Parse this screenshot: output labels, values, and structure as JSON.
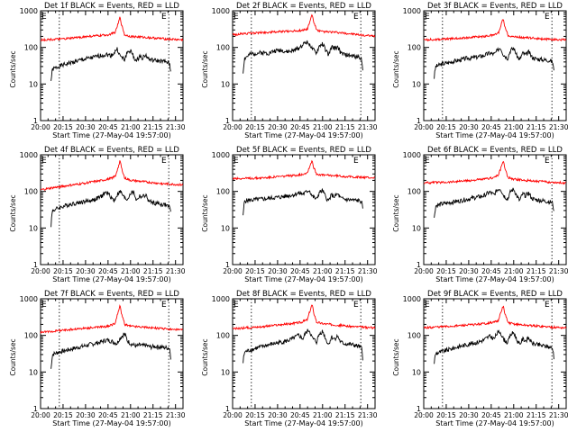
{
  "shared": {
    "xlabel": "Start Time (27-May-04 19:57:00)",
    "ylabel": "Counts/sec",
    "x_tick_labels": [
      "20:00",
      "20:15",
      "20:30",
      "20:45",
      "21:00",
      "21:15",
      "21:30"
    ],
    "x_tick_minutes": [
      0,
      15,
      30,
      45,
      60,
      75,
      90
    ],
    "y_tick_labels": [
      "1",
      "10",
      "100",
      "1000"
    ],
    "y_tick_values": [
      1,
      10,
      100,
      1000
    ],
    "xlim_minutes": [
      0,
      95
    ],
    "ylim": [
      1,
      1000
    ],
    "y_scale": "log",
    "line_colors": {
      "events": "#000000",
      "lld": "#ff0000"
    },
    "marker_label": "E"
  },
  "chart_data": [
    {
      "type": "line",
      "title": "Det 1f BLACK = Events, RED = LLD",
      "events_start": 7,
      "events_end": 87,
      "markers": [
        12.5,
        85.5
      ],
      "series": [
        {
          "name": "Events",
          "color": "#000000",
          "x_minutes": [
            7,
            8,
            12,
            16,
            20,
            24,
            28,
            32,
            36,
            40,
            44,
            47,
            49,
            51,
            53,
            56,
            58,
            60,
            62,
            64,
            66,
            68,
            70,
            72,
            74,
            76,
            80,
            84,
            86,
            87
          ],
          "values": [
            12,
            25,
            30,
            34,
            38,
            42,
            46,
            50,
            54,
            60,
            64,
            60,
            70,
            90,
            58,
            45,
            75,
            80,
            55,
            40,
            58,
            52,
            62,
            48,
            45,
            44,
            42,
            40,
            36,
            17
          ]
        },
        {
          "name": "LLD",
          "color": "#ff0000",
          "x_minutes": [
            0,
            8,
            16,
            24,
            32,
            40,
            46,
            50,
            52,
            53,
            54,
            56,
            60,
            68,
            76,
            84,
            95
          ],
          "values": [
            160,
            165,
            170,
            185,
            200,
            210,
            225,
            260,
            470,
            680,
            400,
            220,
            200,
            190,
            180,
            170,
            160
          ]
        }
      ]
    },
    {
      "type": "line",
      "title": "Det 2f BLACK = Events, RED = LLD",
      "events_start": 7,
      "events_end": 87,
      "markers": [
        12.5,
        85.5
      ],
      "series": [
        {
          "name": "Events",
          "color": "#000000",
          "x_minutes": [
            7,
            8,
            12,
            16,
            20,
            24,
            28,
            32,
            36,
            40,
            44,
            47,
            49,
            51,
            53,
            56,
            58,
            60,
            62,
            64,
            66,
            68,
            70,
            72,
            74,
            76,
            80,
            84,
            86,
            87
          ],
          "values": [
            20,
            50,
            65,
            70,
            72,
            70,
            80,
            85,
            75,
            80,
            95,
            120,
            140,
            130,
            90,
            70,
            110,
            125,
            85,
            60,
            100,
            95,
            105,
            70,
            65,
            62,
            58,
            55,
            50,
            15
          ]
        },
        {
          "name": "LLD",
          "color": "#ff0000",
          "x_minutes": [
            0,
            8,
            16,
            24,
            32,
            40,
            46,
            50,
            52,
            53,
            54,
            56,
            60,
            68,
            76,
            84,
            95
          ],
          "values": [
            220,
            240,
            250,
            260,
            270,
            280,
            290,
            320,
            560,
            800,
            500,
            290,
            270,
            260,
            240,
            220,
            200
          ]
        }
      ]
    },
    {
      "type": "line",
      "title": "Det 3f BLACK = Events, RED = LLD",
      "events_start": 7,
      "events_end": 87,
      "markers": [
        12.5,
        85.5
      ],
      "series": [
        {
          "name": "Events",
          "color": "#000000",
          "x_minutes": [
            7,
            8,
            12,
            16,
            20,
            24,
            28,
            32,
            36,
            40,
            44,
            47,
            49,
            51,
            53,
            56,
            58,
            60,
            62,
            64,
            66,
            68,
            70,
            72,
            74,
            76,
            80,
            84,
            86,
            87
          ],
          "values": [
            15,
            30,
            35,
            38,
            42,
            45,
            50,
            52,
            55,
            60,
            70,
            65,
            80,
            100,
            65,
            50,
            85,
            95,
            60,
            45,
            70,
            62,
            75,
            55,
            50,
            48,
            46,
            44,
            40,
            17
          ]
        },
        {
          "name": "LLD",
          "color": "#ff0000",
          "x_minutes": [
            0,
            8,
            16,
            24,
            32,
            40,
            46,
            50,
            52,
            53,
            54,
            56,
            60,
            68,
            76,
            84,
            95
          ],
          "values": [
            160,
            165,
            170,
            180,
            190,
            200,
            215,
            250,
            460,
            620,
            380,
            215,
            195,
            185,
            175,
            165,
            160
          ]
        }
      ]
    },
    {
      "type": "line",
      "title": "Det 4f BLACK = Events, RED = LLD",
      "events_start": 7,
      "events_end": 87,
      "markers": [
        12.5,
        85.5
      ],
      "series": [
        {
          "name": "Events",
          "color": "#000000",
          "x_minutes": [
            7,
            8,
            12,
            16,
            20,
            24,
            28,
            32,
            36,
            40,
            44,
            47,
            49,
            51,
            53,
            56,
            58,
            60,
            62,
            64,
            66,
            68,
            70,
            72,
            74,
            76,
            80,
            84,
            86,
            87
          ],
          "values": [
            12,
            30,
            35,
            40,
            45,
            48,
            52,
            55,
            60,
            70,
            95,
            70,
            55,
            80,
            100,
            65,
            60,
            90,
            95,
            55,
            75,
            70,
            80,
            55,
            50,
            48,
            45,
            42,
            38,
            22
          ]
        },
        {
          "name": "LLD",
          "color": "#ff0000",
          "x_minutes": [
            0,
            8,
            16,
            24,
            32,
            40,
            46,
            50,
            52,
            53,
            54,
            56,
            60,
            68,
            76,
            84,
            95
          ],
          "values": [
            110,
            125,
            140,
            155,
            175,
            195,
            220,
            260,
            480,
            700,
            420,
            230,
            200,
            185,
            170,
            160,
            150
          ]
        }
      ]
    },
    {
      "type": "line",
      "title": "Det 5f BLACK = Events, RED = LLD",
      "events_start": 7,
      "events_end": 87,
      "markers": [],
      "series": [
        {
          "name": "Events",
          "color": "#000000",
          "x_minutes": [
            7,
            8,
            12,
            16,
            20,
            24,
            28,
            32,
            36,
            40,
            44,
            47,
            49,
            51,
            53,
            56,
            58,
            60,
            62,
            64,
            66,
            68,
            70,
            72,
            74,
            76,
            80,
            84,
            86,
            87
          ],
          "values": [
            20,
            55,
            58,
            60,
            62,
            64,
            68,
            70,
            75,
            80,
            90,
            85,
            95,
            110,
            75,
            60,
            95,
            105,
            70,
            55,
            80,
            72,
            85,
            65,
            62,
            60,
            58,
            56,
            52,
            25
          ]
        },
        {
          "name": "LLD",
          "color": "#ff0000",
          "x_minutes": [
            0,
            8,
            16,
            24,
            32,
            40,
            46,
            50,
            52,
            53,
            54,
            56,
            60,
            68,
            76,
            84,
            95
          ],
          "values": [
            230,
            225,
            230,
            240,
            255,
            270,
            290,
            330,
            550,
            700,
            450,
            300,
            280,
            270,
            255,
            245,
            235
          ]
        }
      ]
    },
    {
      "type": "line",
      "title": "Det 6f BLACK = Events, RED = LLD",
      "events_start": 7,
      "events_end": 87,
      "markers": [
        85.5
      ],
      "series": [
        {
          "name": "Events",
          "color": "#000000",
          "x_minutes": [
            7,
            8,
            12,
            16,
            20,
            24,
            28,
            32,
            36,
            40,
            44,
            47,
            49,
            51,
            53,
            56,
            58,
            60,
            62,
            64,
            66,
            68,
            70,
            72,
            74,
            76,
            80,
            84,
            86,
            87
          ],
          "values": [
            18,
            40,
            45,
            48,
            52,
            55,
            60,
            65,
            70,
            75,
            95,
            80,
            110,
            120,
            80,
            60,
            100,
            115,
            75,
            55,
            85,
            75,
            90,
            65,
            60,
            58,
            55,
            52,
            48,
            20
          ]
        },
        {
          "name": "LLD",
          "color": "#ff0000",
          "x_minutes": [
            0,
            8,
            16,
            24,
            32,
            40,
            46,
            50,
            52,
            53,
            54,
            56,
            60,
            68,
            76,
            84,
            95
          ],
          "values": [
            170,
            175,
            180,
            190,
            200,
            215,
            235,
            280,
            500,
            700,
            430,
            240,
            215,
            200,
            190,
            180,
            170
          ]
        }
      ]
    },
    {
      "type": "line",
      "title": "Det 7f BLACK = Events, RED = LLD",
      "events_start": 7,
      "events_end": 87,
      "markers": [
        12.5,
        85.5
      ],
      "series": [
        {
          "name": "Events",
          "color": "#000000",
          "x_minutes": [
            7,
            8,
            12,
            16,
            20,
            24,
            28,
            32,
            36,
            40,
            44,
            47,
            49,
            51,
            53,
            56,
            58,
            60,
            62,
            64,
            66,
            68,
            70,
            72,
            74,
            76,
            80,
            84,
            86,
            87
          ],
          "values": [
            12,
            30,
            35,
            38,
            42,
            46,
            50,
            55,
            60,
            65,
            75,
            70,
            65,
            60,
            85,
            110,
            70,
            60,
            55,
            50,
            55,
            52,
            54,
            50,
            48,
            50,
            48,
            46,
            45,
            20
          ]
        },
        {
          "name": "LLD",
          "color": "#ff0000",
          "x_minutes": [
            0,
            8,
            16,
            24,
            32,
            40,
            46,
            50,
            52,
            53,
            54,
            56,
            60,
            68,
            76,
            84,
            95
          ],
          "values": [
            120,
            130,
            140,
            150,
            160,
            170,
            180,
            220,
            450,
            650,
            380,
            200,
            180,
            170,
            160,
            150,
            140
          ]
        }
      ]
    },
    {
      "type": "line",
      "title": "Det 8f BLACK = Events, RED = LLD",
      "events_start": 7,
      "events_end": 87,
      "markers": [
        12.5,
        85.5
      ],
      "series": [
        {
          "name": "Events",
          "color": "#000000",
          "x_minutes": [
            7,
            8,
            12,
            16,
            20,
            24,
            28,
            32,
            36,
            40,
            44,
            47,
            49,
            51,
            53,
            56,
            58,
            60,
            62,
            64,
            66,
            68,
            70,
            72,
            74,
            76,
            80,
            84,
            86,
            87
          ],
          "values": [
            18,
            35,
            40,
            45,
            50,
            55,
            60,
            65,
            70,
            80,
            100,
            80,
            120,
            140,
            85,
            65,
            110,
            130,
            80,
            55,
            90,
            80,
            95,
            65,
            60,
            58,
            55,
            50,
            45,
            18
          ]
        },
        {
          "name": "LLD",
          "color": "#ff0000",
          "x_minutes": [
            0,
            8,
            16,
            24,
            32,
            40,
            46,
            50,
            52,
            53,
            54,
            56,
            60,
            68,
            76,
            84,
            95
          ],
          "values": [
            150,
            160,
            170,
            180,
            195,
            210,
            230,
            270,
            520,
            700,
            420,
            230,
            210,
            195,
            180,
            170,
            160
          ]
        }
      ]
    },
    {
      "type": "line",
      "title": "Det 9f BLACK = Events, RED = LLD",
      "events_start": 7,
      "events_end": 87,
      "markers": [
        12.5,
        85.5
      ],
      "series": [
        {
          "name": "Events",
          "color": "#000000",
          "x_minutes": [
            7,
            8,
            12,
            16,
            20,
            24,
            28,
            32,
            36,
            40,
            44,
            47,
            49,
            51,
            53,
            56,
            58,
            60,
            62,
            64,
            66,
            68,
            70,
            72,
            74,
            76,
            80,
            84,
            86,
            87
          ],
          "values": [
            18,
            32,
            36,
            40,
            45,
            50,
            55,
            60,
            65,
            75,
            95,
            80,
            115,
            125,
            80,
            62,
            105,
            120,
            75,
            55,
            80,
            72,
            85,
            62,
            58,
            55,
            52,
            48,
            44,
            20
          ]
        },
        {
          "name": "LLD",
          "color": "#ff0000",
          "x_minutes": [
            0,
            8,
            16,
            24,
            32,
            40,
            46,
            50,
            52,
            53,
            54,
            56,
            60,
            68,
            76,
            84,
            95
          ],
          "values": [
            160,
            170,
            175,
            185,
            195,
            210,
            225,
            260,
            480,
            650,
            400,
            225,
            205,
            190,
            180,
            170,
            160
          ]
        }
      ]
    }
  ]
}
